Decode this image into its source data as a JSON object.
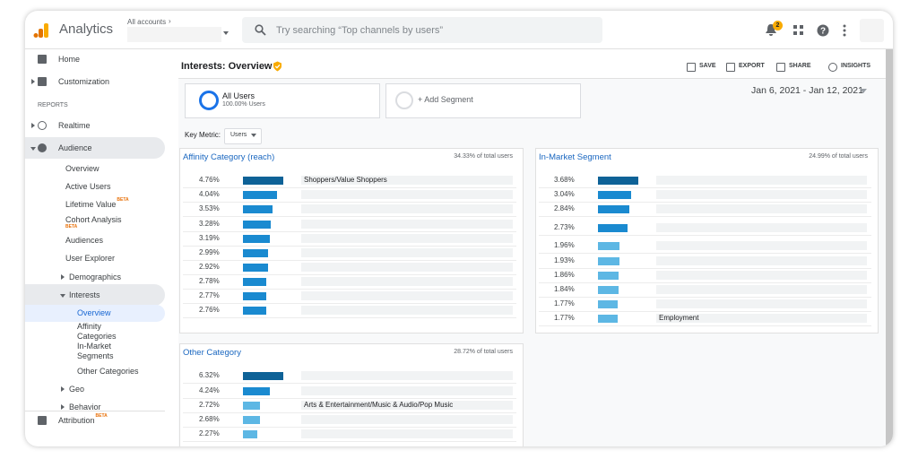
{
  "header": {
    "product": "Analytics",
    "account_label": "All accounts",
    "search_placeholder": "Try searching “Top channels by users”",
    "notification_count": 2
  },
  "nav": [
    {
      "label": "Home"
    },
    {
      "label": "Customization"
    },
    {
      "label": "REPORTS"
    },
    {
      "label": "Realtime"
    },
    {
      "label": "Audience"
    },
    {
      "label": "Overview"
    },
    {
      "label": "Active Users"
    },
    {
      "label": "Lifetime Value",
      "badge": "BETA"
    },
    {
      "label": "Cohort Analysis",
      "badge": "BETA"
    },
    {
      "label": "Audiences"
    },
    {
      "label": "User Explorer"
    },
    {
      "label": "Demographics"
    },
    {
      "label": "Interests"
    },
    {
      "label": "Overview"
    },
    {
      "label": "Affinity Categories"
    },
    {
      "label": "In-Market Segments"
    },
    {
      "label": "Other Categories"
    },
    {
      "label": "Geo"
    },
    {
      "label": "Behavior"
    },
    {
      "label": "Attribution",
      "badge": "BETA"
    }
  ],
  "report": {
    "title": "Interests: Overview",
    "actions": [
      "SAVE",
      "EXPORT",
      "SHARE",
      "INSIGHTS"
    ],
    "segments": [
      {
        "name": "All Users",
        "detail": "100.00% Users"
      },
      {
        "name": "+ Add Segment"
      }
    ],
    "date_range": "Jan 6, 2021 - Jan 12, 2021",
    "key_metric_label": "Key Metric:",
    "key_metric": "Users"
  },
  "panels": [
    {
      "title": "Affinity Category (reach)",
      "share": "34.33% of total users",
      "rows": [
        {
          "value": 4.76,
          "label": "4.76%",
          "color": "#0e6297",
          "name": "Shoppers/Value Shoppers"
        },
        {
          "value": 4.04,
          "label": "4.04%",
          "color": "#1a8ad0"
        },
        {
          "value": 3.53,
          "label": "3.53%",
          "color": "#1a8ad0"
        },
        {
          "value": 3.28,
          "label": "3.28%",
          "color": "#1a8ad0"
        },
        {
          "value": 3.19,
          "label": "3.19%",
          "color": "#1a8ad0"
        },
        {
          "value": 2.99,
          "label": "2.99%",
          "color": "#1a8ad0"
        },
        {
          "value": 2.92,
          "label": "2.92%",
          "color": "#1a8ad0"
        },
        {
          "value": 2.78,
          "label": "2.78%",
          "color": "#1a8ad0"
        },
        {
          "value": 2.77,
          "label": "2.77%",
          "color": "#1a8ad0"
        },
        {
          "value": 2.76,
          "label": "2.76%",
          "color": "#1a8ad0"
        }
      ]
    },
    {
      "title": "In-Market Segment",
      "share": "24.99% of total users",
      "rows": [
        {
          "value": 3.68,
          "label": "3.68%",
          "color": "#0e6297"
        },
        {
          "value": 3.04,
          "label": "3.04%",
          "color": "#1a8ad0"
        },
        {
          "value": 2.84,
          "label": "2.84%",
          "color": "#1a8ad0"
        },
        {
          "value": 2.73,
          "label": "2.73%",
          "color": "#1a8ad0"
        },
        {
          "value": 1.96,
          "label": "1.96%",
          "color": "#5db7e4"
        },
        {
          "value": 1.93,
          "label": "1.93%",
          "color": "#5db7e4"
        },
        {
          "value": 1.86,
          "label": "1.86%",
          "color": "#5db7e4"
        },
        {
          "value": 1.84,
          "label": "1.84%",
          "color": "#5db7e4"
        },
        {
          "value": 1.77,
          "label": "1.77%",
          "color": "#5db7e4"
        },
        {
          "value": 1.77,
          "label": "1.77%",
          "color": "#5db7e4",
          "name": "Employment"
        }
      ]
    },
    {
      "title": "Other Category",
      "share": "28.72% of total users",
      "rows": [
        {
          "value": 6.32,
          "label": "6.32%",
          "color": "#0e6297"
        },
        {
          "value": 4.24,
          "label": "4.24%",
          "color": "#1a8ad0"
        },
        {
          "value": 2.72,
          "label": "2.72%",
          "color": "#5db7e4",
          "name": "Arts & Entertainment/Music & Audio/Pop Music"
        },
        {
          "value": 2.68,
          "label": "2.68%",
          "color": "#5db7e4"
        },
        {
          "value": 2.27,
          "label": "2.27%",
          "color": "#5db7e4"
        }
      ]
    }
  ]
}
